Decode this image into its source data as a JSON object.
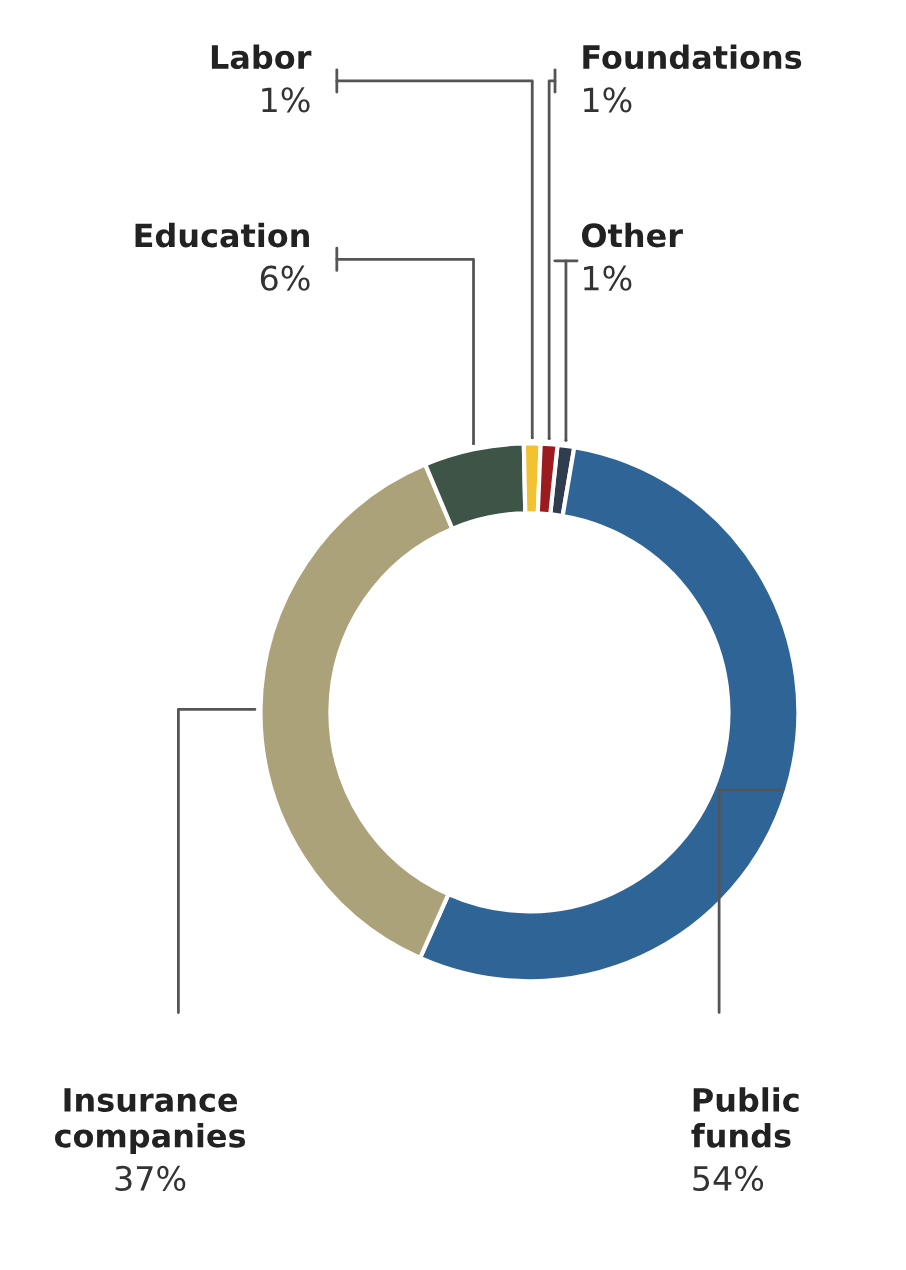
{
  "chart_data": {
    "type": "donut",
    "categories": [
      "Other",
      "Public funds",
      "Insurance companies",
      "Education",
      "Labor",
      "Foundations"
    ],
    "values": [
      1,
      54,
      37,
      6,
      1,
      1
    ],
    "colors": [
      "#2f3d4e",
      "#2f6496",
      "#aca27a",
      "#3d5446",
      "#f2c230",
      "#9b1b1f"
    ],
    "value_labels": [
      "1%",
      "54%",
      "37%",
      "6%",
      "1%",
      "1%"
    ]
  }
}
